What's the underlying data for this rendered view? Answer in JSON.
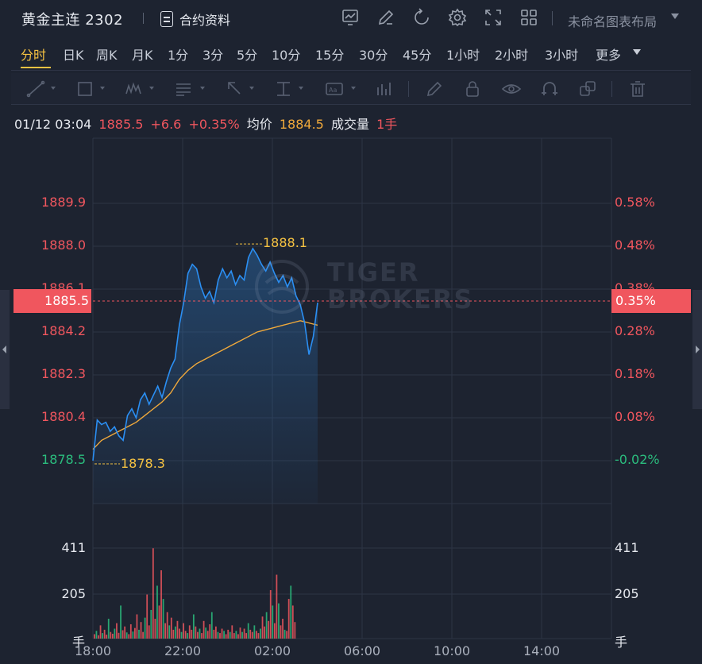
{
  "header": {
    "title": "黄金主连 2302",
    "contract_info_label": "合约资料",
    "layout_name": "未命名图表布局",
    "icons": [
      "chart-icon",
      "edit-icon",
      "refresh-icon",
      "settings-icon",
      "fullscreen-icon",
      "grid-layout-icon"
    ]
  },
  "tabs": [
    {
      "label": "分时",
      "active": true
    },
    {
      "label": "日K"
    },
    {
      "label": "周K"
    },
    {
      "label": "月K"
    },
    {
      "label": "1分"
    },
    {
      "label": "3分"
    },
    {
      "label": "5分"
    },
    {
      "label": "10分"
    },
    {
      "label": "15分"
    },
    {
      "label": "30分"
    },
    {
      "label": "45分"
    },
    {
      "label": "1小时"
    },
    {
      "label": "2小时"
    },
    {
      "label": "3小时"
    },
    {
      "label": "更多"
    }
  ],
  "toolbar": {
    "tools": [
      "trend-line-icon",
      "rectangle-icon",
      "wave-icon",
      "text-block-icon",
      "arrow-icon",
      "measure-icon",
      "label-icon",
      "indicator-icon",
      "brush-icon",
      "lock-icon",
      "eye-icon",
      "magnet-icon",
      "copy-icon",
      "trash-icon"
    ]
  },
  "info": {
    "datetime": "01/12 03:04",
    "price": "1885.5",
    "change": "+6.6",
    "change_pct": "+0.35%",
    "avg_label": "均价",
    "avg_value": "1884.5",
    "volume_label": "成交量",
    "volume_value": "1手"
  },
  "chart_data": {
    "type": "line",
    "symbol": "黄金主连 2302",
    "last_price": 1885.5,
    "last_price_label": "1885.5",
    "last_pct_label": "0.35%",
    "high_label": "1888.1",
    "low_label": "1878.3",
    "high": 1888.1,
    "low": 1878.3,
    "price_axis_left": [
      "1889.9",
      "1888.0",
      "1886.1",
      "1884.2",
      "1882.3",
      "1880.4",
      "1878.5"
    ],
    "price_axis_right": [
      "0.58%",
      "0.48%",
      "0.38%",
      "0.28%",
      "0.18%",
      "0.08%",
      "-0.02%"
    ],
    "volume_axis": [
      "411",
      "205"
    ],
    "volume_unit": "手",
    "x_ticks": [
      "18:00",
      "22:00",
      "02:00",
      "06:00",
      "10:00",
      "14:00"
    ],
    "price_series": [
      [
        0,
        1878.5
      ],
      [
        3,
        1880.3
      ],
      [
        6,
        1880.1
      ],
      [
        9,
        1880.2
      ],
      [
        12,
        1879.8
      ],
      [
        15,
        1880.0
      ],
      [
        18,
        1879.6
      ],
      [
        21,
        1879.4
      ],
      [
        24,
        1880.5
      ],
      [
        27,
        1880.8
      ],
      [
        30,
        1880.4
      ],
      [
        33,
        1881.2
      ],
      [
        36,
        1881.5
      ],
      [
        39,
        1881.0
      ],
      [
        42,
        1881.4
      ],
      [
        45,
        1881.8
      ],
      [
        48,
        1881.3
      ],
      [
        51,
        1882.0
      ],
      [
        54,
        1882.6
      ],
      [
        57,
        1883.0
      ],
      [
        60,
        1884.5
      ],
      [
        63,
        1885.5
      ],
      [
        66,
        1886.8
      ],
      [
        69,
        1887.2
      ],
      [
        72,
        1887.0
      ],
      [
        75,
        1886.2
      ],
      [
        78,
        1885.7
      ],
      [
        81,
        1886.0
      ],
      [
        84,
        1885.5
      ],
      [
        87,
        1886.5
      ],
      [
        90,
        1887.0
      ],
      [
        93,
        1886.6
      ],
      [
        96,
        1886.9
      ],
      [
        99,
        1886.3
      ],
      [
        102,
        1886.7
      ],
      [
        105,
        1886.5
      ],
      [
        108,
        1887.5
      ],
      [
        111,
        1887.9
      ],
      [
        114,
        1887.6
      ],
      [
        117,
        1887.2
      ],
      [
        120,
        1886.9
      ],
      [
        123,
        1887.3
      ],
      [
        126,
        1886.8
      ],
      [
        129,
        1886.4
      ],
      [
        132,
        1886.7
      ],
      [
        135,
        1886.2
      ],
      [
        138,
        1886.6
      ],
      [
        141,
        1885.8
      ],
      [
        144,
        1885.4
      ],
      [
        147,
        1884.6
      ],
      [
        150,
        1883.2
      ],
      [
        153,
        1884.0
      ],
      [
        156,
        1885.5
      ]
    ],
    "avg_series": [
      [
        0,
        1879.0
      ],
      [
        6,
        1879.4
      ],
      [
        12,
        1879.6
      ],
      [
        18,
        1879.8
      ],
      [
        24,
        1880.0
      ],
      [
        30,
        1880.2
      ],
      [
        36,
        1880.5
      ],
      [
        42,
        1880.8
      ],
      [
        48,
        1881.1
      ],
      [
        54,
        1881.5
      ],
      [
        60,
        1882.1
      ],
      [
        66,
        1882.5
      ],
      [
        72,
        1882.8
      ],
      [
        78,
        1883.0
      ],
      [
        84,
        1883.2
      ],
      [
        90,
        1883.4
      ],
      [
        96,
        1883.6
      ],
      [
        102,
        1883.8
      ],
      [
        108,
        1884.0
      ],
      [
        114,
        1884.2
      ],
      [
        120,
        1884.3
      ],
      [
        126,
        1884.4
      ],
      [
        132,
        1884.5
      ],
      [
        138,
        1884.6
      ],
      [
        144,
        1884.7
      ],
      [
        150,
        1884.6
      ],
      [
        156,
        1884.5
      ]
    ],
    "volume_series": [
      20,
      35,
      15,
      60,
      25,
      40,
      18,
      90,
      30,
      22,
      45,
      70,
      26,
      150,
      38,
      55,
      28,
      20,
      65,
      32,
      48,
      110,
      40,
      75,
      30,
      95,
      200,
      60,
      130,
      410,
      90,
      240,
      150,
      310,
      180,
      70,
      120,
      60,
      95,
      40,
      55,
      80,
      45,
      30,
      70,
      35,
      25,
      60,
      40,
      110,
      55,
      30,
      45,
      25,
      80,
      50,
      35,
      65,
      120,
      40,
      55,
      30,
      25,
      45,
      35,
      20,
      40,
      30,
      60,
      25,
      35,
      20,
      50,
      30,
      45,
      25,
      70,
      40,
      30,
      60,
      35,
      25,
      45,
      100,
      55,
      120,
      80,
      220,
      150,
      70,
      290,
      160,
      60,
      90,
      40,
      35,
      180,
      240,
      150,
      75
    ],
    "colors": {
      "price_line": "#2b8ff3",
      "avg_line": "#f0a93b",
      "up": "#f0565e",
      "down": "#2bbd7e",
      "hilo": "#f5c242"
    }
  }
}
